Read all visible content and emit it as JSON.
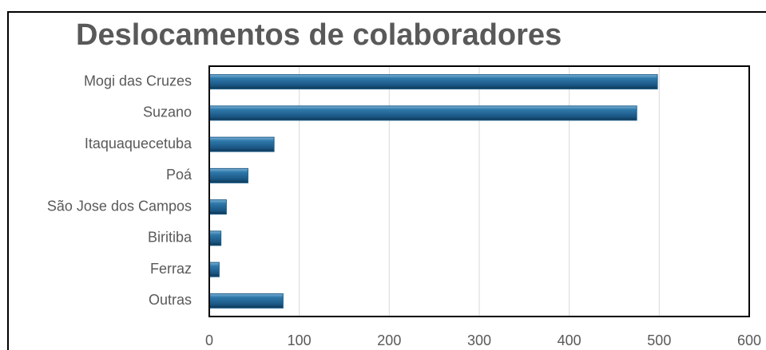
{
  "chart_data": {
    "type": "bar",
    "orientation": "horizontal",
    "title": "Deslocamentos de colaboradores",
    "categories": [
      "Mogi das Cruzes",
      "Suzano",
      "Itaquaquecetuba",
      "Poá",
      "São Jose dos Campos",
      "Biritiba",
      "Ferraz",
      "Outras"
    ],
    "values": [
      498,
      475,
      72,
      43,
      19,
      13,
      11,
      82
    ],
    "color": "#1f5f8b",
    "xlim": [
      0,
      600
    ],
    "xticks": [
      0,
      100,
      200,
      300,
      400,
      500,
      600
    ],
    "grid": true
  }
}
